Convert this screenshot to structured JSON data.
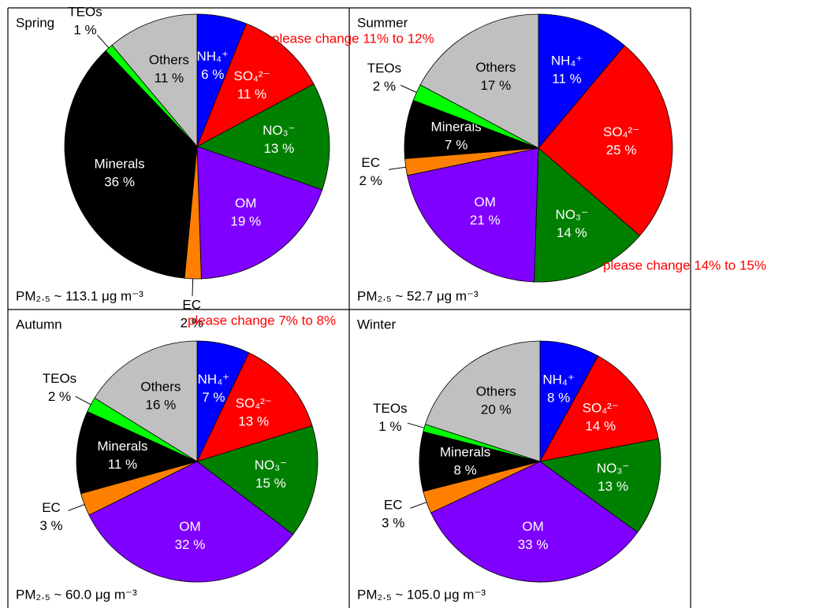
{
  "chart_data": [
    {
      "type": "pie",
      "title": "Spring",
      "note": "PM₂.₅ ~ 113.1 μg m⁻³",
      "categories": [
        "NH₄⁺",
        "SO₄²⁻",
        "NO₃⁻",
        "OM",
        "EC",
        "Minerals",
        "TEOs",
        "Others"
      ],
      "values": [
        6,
        11,
        13,
        19,
        2,
        36,
        1,
        11
      ],
      "value_labels": [
        "6 %",
        "11 %",
        "13 %",
        "19 %",
        "2 %",
        "36 %",
        "1 %",
        "11 %"
      ],
      "colors": [
        "#0000ff",
        "#ff0000",
        "#008000",
        "#8000ff",
        "#ff8000",
        "#000000",
        "#00ff00",
        "#c0c0c0"
      ]
    },
    {
      "type": "pie",
      "title": "Summer",
      "note": "PM₂.₅ ~ 52.7 μg m⁻³",
      "categories": [
        "NH₄⁺",
        "SO₄²⁻",
        "NO₃⁻",
        "OM",
        "EC",
        "Minerals",
        "TEOs",
        "Others"
      ],
      "values": [
        11,
        25,
        14,
        21,
        2,
        7,
        2,
        17
      ],
      "value_labels": [
        "11 %",
        "25 %",
        "14 %",
        "21 %",
        "2 %",
        "7 %",
        "2 %",
        "17 %"
      ],
      "colors": [
        "#0000ff",
        "#ff0000",
        "#008000",
        "#8000ff",
        "#ff8000",
        "#000000",
        "#00ff00",
        "#c0c0c0"
      ]
    },
    {
      "type": "pie",
      "title": "Autumn",
      "note": "PM₂.₅ ~ 60.0 μg m⁻³",
      "categories": [
        "NH₄⁺",
        "SO₄²⁻",
        "NO₃⁻",
        "OM",
        "EC",
        "Minerals",
        "TEOs",
        "Others"
      ],
      "values": [
        7,
        13,
        15,
        32,
        3,
        11,
        2,
        16
      ],
      "value_labels": [
        "7 %",
        "13 %",
        "15 %",
        "32 %",
        "3 %",
        "11 %",
        "2 %",
        "16 %"
      ],
      "colors": [
        "#0000ff",
        "#ff0000",
        "#008000",
        "#8000ff",
        "#ff8000",
        "#000000",
        "#00ff00",
        "#c0c0c0"
      ]
    },
    {
      "type": "pie",
      "title": "Winter",
      "note": "PM₂.₅ ~ 105.0 μg m⁻³",
      "categories": [
        "NH₄⁺",
        "SO₄²⁻",
        "NO₃⁻",
        "OM",
        "EC",
        "Minerals",
        "TEOs",
        "Others"
      ],
      "values": [
        8,
        14,
        13,
        33,
        3,
        8,
        1,
        20
      ],
      "value_labels": [
        "8 %",
        "14 %",
        "13 %",
        "33 %",
        "3 %",
        "8 %",
        "1 %",
        "20 %"
      ],
      "colors": [
        "#0000ff",
        "#ff0000",
        "#008000",
        "#8000ff",
        "#ff8000",
        "#000000",
        "#00ff00",
        "#c0c0c0"
      ]
    }
  ],
  "annotations": [
    "please change 11% to 12%",
    "please change 14% to 15%",
    "please change 7% to 8%"
  ]
}
